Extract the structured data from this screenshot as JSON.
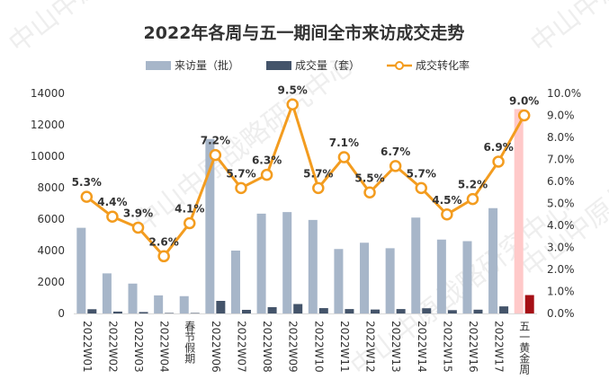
{
  "chart_data": {
    "type": "bar",
    "title": "2022年各周与五一期间全市来访成交走势",
    "categories": [
      "2022W01",
      "2022W02",
      "2022W03",
      "2022W04",
      "春节假期",
      "2022W06",
      "2022W07",
      "2022W08",
      "2022W09",
      "2022W10",
      "2022W11",
      "2022W12",
      "2022W13",
      "2022W14",
      "2022W15",
      "2022W16",
      "2022W17",
      "五一黄金周"
    ],
    "series": [
      {
        "name": "来访量（批）",
        "axis": "left",
        "chart": "bar",
        "color": "#a7b6c9",
        "values": [
          5450,
          2550,
          1900,
          1150,
          1100,
          11100,
          4000,
          6350,
          6450,
          5950,
          4100,
          4500,
          4150,
          6100,
          4700,
          4600,
          6700,
          13000
        ]
      },
      {
        "name": "成交量（套）",
        "axis": "left",
        "chart": "bar",
        "color": "#44546a",
        "values": [
          270,
          120,
          90,
          30,
          30,
          800,
          230,
          400,
          600,
          340,
          280,
          250,
          280,
          330,
          210,
          240,
          450,
          1170
        ]
      },
      {
        "name": "成交转化率",
        "axis": "right",
        "chart": "line",
        "color": "#f39c1f",
        "values": [
          5.3,
          4.4,
          3.9,
          2.6,
          4.1,
          7.2,
          5.7,
          6.3,
          9.5,
          5.7,
          7.1,
          5.5,
          6.7,
          5.7,
          4.5,
          5.2,
          6.9,
          9.0
        ],
        "labels": [
          "5.3%",
          "4.4%",
          "3.9%",
          "2.6%",
          "4.1%",
          "7.2%",
          "5.7%",
          "6.3%",
          "9.5%",
          "5.7%",
          "7.1%",
          "5.5%",
          "6.7%",
          "5.7%",
          "4.5%",
          "5.2%",
          "6.9%",
          "9.0%"
        ]
      }
    ],
    "highlight": {
      "index": 17,
      "visits_color": "#ffc9c9",
      "deals_color": "#a50f15"
    },
    "ylim": [
      0,
      14000
    ],
    "yticks": [
      0,
      2000,
      4000,
      6000,
      8000,
      10000,
      12000,
      14000
    ],
    "y2lim": [
      0,
      10
    ],
    "y2ticks": [
      "0.0%",
      "1.0%",
      "2.0%",
      "3.0%",
      "4.0%",
      "5.0%",
      "6.0%",
      "7.0%",
      "8.0%",
      "9.0%",
      "10.0%"
    ],
    "xlabel": "",
    "ylabel": "",
    "legend": "top-center",
    "grid": false,
    "watermark": {
      "text": "中山中原战略研究中心"
    }
  }
}
